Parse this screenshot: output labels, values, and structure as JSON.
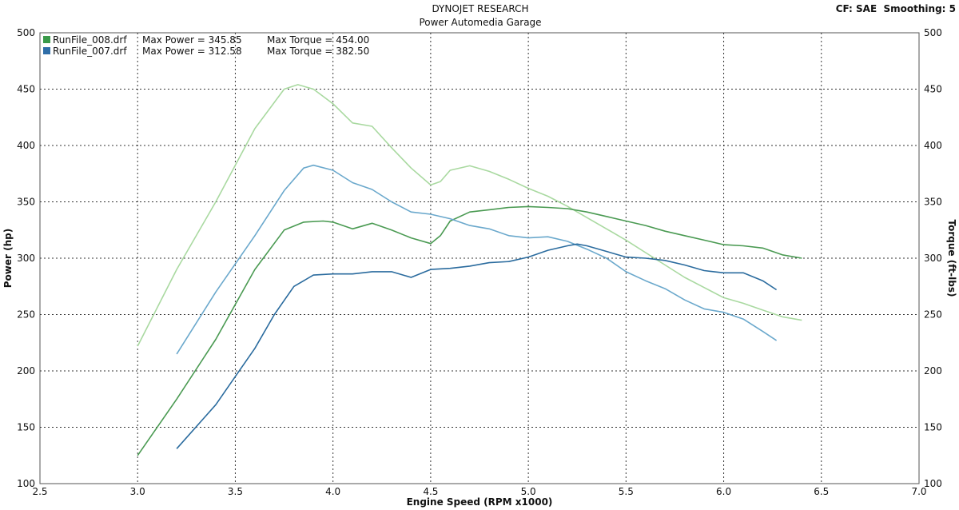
{
  "header": {
    "title": "DYNOJET RESEARCH",
    "subtitle": "Power Automedia Garage",
    "settings": "CF: SAE  Smoothing: 5"
  },
  "legend": {
    "entries": [
      {
        "file": "RunFile_008.drf",
        "power_text": "Max Power = 345.85",
        "torque_text": "Max Torque = 454.00",
        "color": "#3a9a4a"
      },
      {
        "file": "RunFile_007.drf",
        "power_text": "Max Power = 312.58",
        "torque_text": "Max Torque = 382.50",
        "color": "#2f6ea8"
      }
    ]
  },
  "colors": {
    "power_008": "#4a9a52",
    "torque_008": "#a9d9a0",
    "power_007": "#2a6b9e",
    "torque_007": "#6aa8cc",
    "grid": "#333333",
    "frame": "#555555"
  },
  "chart_data": {
    "type": "line",
    "title": "DYNOJET RESEARCH",
    "subtitle": "Power Automedia Garage",
    "xlabel": "Engine Speed (RPM x1000)",
    "ylabel": "Power (hp)",
    "y2label": "Torque (ft-lbs)",
    "xlim": [
      2.5,
      7.0
    ],
    "ylim": [
      100,
      500
    ],
    "y2lim": [
      100,
      500
    ],
    "xticks": [
      "2.5",
      "3.0",
      "3.5",
      "4.0",
      "4.5",
      "5.0",
      "5.5",
      "6.0",
      "6.5",
      "7.0"
    ],
    "yticks": [
      "100",
      "150",
      "200",
      "250",
      "300",
      "350",
      "400",
      "450",
      "500"
    ],
    "grid": true,
    "legend_position": "top-left",
    "series": [
      {
        "name": "RunFile_008.drf",
        "quantity": "Torque",
        "color_key": "torque_008",
        "x": [
          3.0,
          3.2,
          3.4,
          3.6,
          3.75,
          3.82,
          3.9,
          4.0,
          4.1,
          4.2,
          4.3,
          4.4,
          4.5,
          4.55,
          4.6,
          4.7,
          4.8,
          4.9,
          5.0,
          5.1,
          5.2,
          5.3,
          5.4,
          5.5,
          5.6,
          5.7,
          5.8,
          5.9,
          6.0,
          6.1,
          6.2,
          6.3,
          6.4
        ],
        "y": [
          222,
          290,
          350,
          415,
          450,
          454,
          450,
          437,
          420,
          417,
          398,
          380,
          365,
          368,
          378,
          382,
          377,
          370,
          362,
          355,
          346,
          336,
          326,
          316,
          305,
          294,
          283,
          274,
          265,
          260,
          254,
          248,
          245
        ]
      },
      {
        "name": "RunFile_008.drf",
        "quantity": "Power",
        "color_key": "power_008",
        "x": [
          3.0,
          3.2,
          3.4,
          3.6,
          3.75,
          3.85,
          3.95,
          4.0,
          4.1,
          4.2,
          4.3,
          4.4,
          4.5,
          4.55,
          4.6,
          4.7,
          4.8,
          4.9,
          5.0,
          5.1,
          5.2,
          5.3,
          5.4,
          5.5,
          5.6,
          5.7,
          5.8,
          5.9,
          6.0,
          6.1,
          6.2,
          6.3,
          6.4
        ],
        "y": [
          125,
          175,
          228,
          290,
          325,
          332,
          333,
          332,
          326,
          331,
          325,
          318,
          313,
          320,
          333,
          341,
          343,
          345,
          345.85,
          345,
          344,
          341,
          337,
          333,
          329,
          324,
          320,
          316,
          312,
          311,
          309,
          303,
          300
        ]
      },
      {
        "name": "RunFile_007.drf",
        "quantity": "Torque",
        "color_key": "torque_007",
        "x": [
          3.2,
          3.4,
          3.6,
          3.75,
          3.85,
          3.9,
          4.0,
          4.1,
          4.2,
          4.3,
          4.4,
          4.5,
          4.6,
          4.7,
          4.8,
          4.9,
          5.0,
          5.1,
          5.2,
          5.3,
          5.4,
          5.5,
          5.6,
          5.7,
          5.8,
          5.9,
          6.0,
          6.1,
          6.2,
          6.27
        ],
        "y": [
          215,
          270,
          320,
          360,
          380,
          382.5,
          378,
          367,
          361,
          350,
          341,
          339,
          335,
          329,
          326,
          320,
          318,
          319,
          315,
          308,
          300,
          288,
          280,
          273,
          263,
          255,
          252,
          246,
          235,
          227
        ]
      },
      {
        "name": "RunFile_007.drf",
        "quantity": "Power",
        "color_key": "power_007",
        "x": [
          3.2,
          3.4,
          3.5,
          3.6,
          3.7,
          3.8,
          3.9,
          4.0,
          4.1,
          4.2,
          4.3,
          4.4,
          4.5,
          4.6,
          4.7,
          4.8,
          4.9,
          5.0,
          5.1,
          5.2,
          5.25,
          5.3,
          5.4,
          5.5,
          5.6,
          5.7,
          5.8,
          5.9,
          6.0,
          6.1,
          6.2,
          6.27
        ],
        "y": [
          131,
          170,
          195,
          220,
          250,
          275,
          285,
          286,
          286,
          288,
          288,
          283,
          290,
          291,
          293,
          296,
          297,
          301,
          307,
          311,
          312.58,
          311,
          306,
          301,
          300,
          298,
          294,
          289,
          287,
          287,
          280,
          272
        ]
      }
    ]
  }
}
